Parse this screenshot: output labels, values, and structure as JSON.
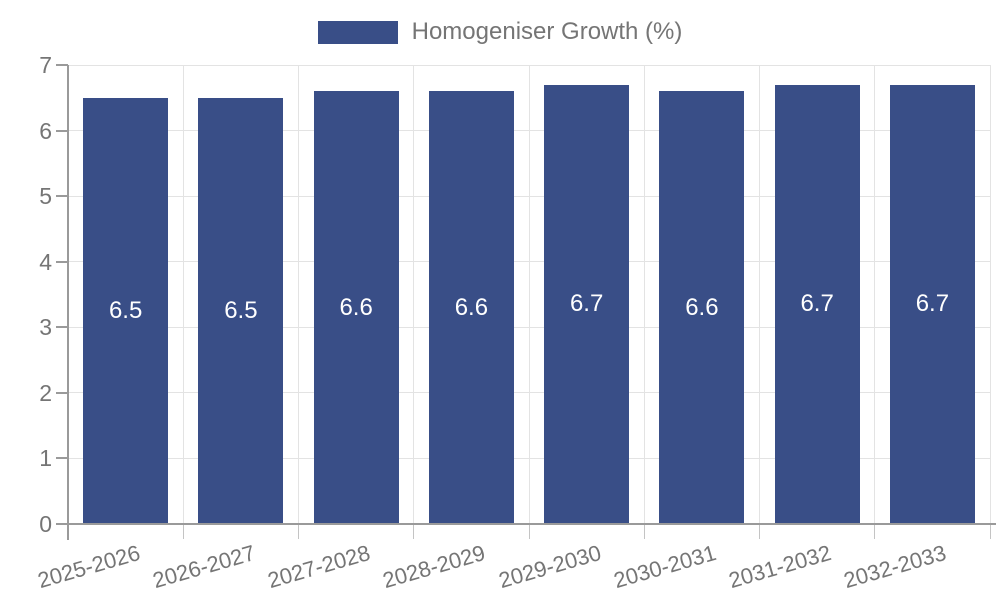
{
  "legend": {
    "label": "Homogeniser Growth (%)"
  },
  "chart_data": {
    "type": "bar",
    "title": "",
    "xlabel": "",
    "ylabel": "",
    "categories": [
      "2025-2026",
      "2026-2027",
      "2027-2028",
      "2028-2029",
      "2029-2030",
      "2030-2031",
      "2031-2032",
      "2032-2033"
    ],
    "series": [
      {
        "name": "Homogeniser Growth (%)",
        "values": [
          6.5,
          6.5,
          6.6,
          6.6,
          6.7,
          6.6,
          6.7,
          6.7
        ]
      }
    ],
    "value_labels": [
      "6.5",
      "6.5",
      "6.6",
      "6.6",
      "6.7",
      "6.6",
      "6.7",
      "6.7"
    ],
    "ylim": [
      0,
      7
    ],
    "yticks": [
      0,
      1,
      2,
      3,
      4,
      5,
      6,
      7
    ],
    "grid": true,
    "legend_position": "top-center",
    "x_tick_rotation_deg": -16,
    "colors": {
      "bar": "#394e87",
      "value_label": "#ffffff",
      "axis_line": "#9a9a9a",
      "grid_line": "#e3e3e3",
      "x_tick_mark": "#c4c4c4",
      "tick_label": "#757575",
      "legend_text": "#757575",
      "background": "#ffffff"
    }
  }
}
